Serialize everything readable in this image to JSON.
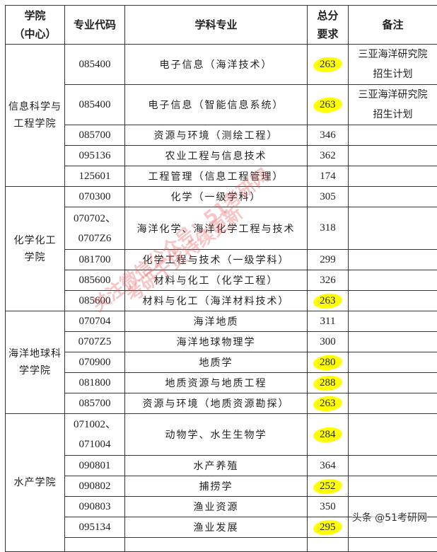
{
  "headers": {
    "college": "学院\n（中心）",
    "code": "专业代码",
    "major": "学科专业",
    "score": "总分\n要求",
    "note": "备注"
  },
  "highlight_color": "#ffff00",
  "groups": [
    {
      "college": "信息科学与\n工程学院",
      "rows": [
        {
          "code": "085400",
          "major": "电子信息（海洋技术）",
          "score": "263",
          "highlight": true,
          "note": "三亚海洋研究院\n招生计划",
          "h": 55
        },
        {
          "code": "085400",
          "major": "电子信息（智能信息系统）",
          "score": "263",
          "highlight": true,
          "note": "三亚海洋研究院\n招生计划",
          "h": 56
        },
        {
          "code": "085700",
          "major": "资源与环境（测绘工程）",
          "score": "346",
          "highlight": false,
          "note": "",
          "h": 28
        },
        {
          "code": "095136",
          "major": "农业工程与信息技术",
          "score": "362",
          "highlight": false,
          "note": "",
          "h": 29
        },
        {
          "code": "125601",
          "major": "工程管理（信息工程管理）",
          "score": "174",
          "highlight": false,
          "note": "",
          "h": 28
        }
      ]
    },
    {
      "college": "化学化工\n学院",
      "rows": [
        {
          "code": "070300",
          "major": "化学（一级学科）",
          "score": "305",
          "highlight": false,
          "note": "",
          "h": 28
        },
        {
          "code": "070702、\n0707Z6",
          "major": "海洋化学、海洋化学工程与技术",
          "score": "318",
          "highlight": false,
          "note": "",
          "h": 60
        },
        {
          "code": "081700",
          "major": "化学工程与技术（一级学科）",
          "score": "299",
          "highlight": false,
          "note": "",
          "h": 29
        },
        {
          "code": "085600",
          "major": "材料与化工（化学工程）",
          "score": "326",
          "highlight": false,
          "note": "",
          "h": 28
        },
        {
          "code": "085600",
          "major": "材料与化工（海洋材料技术）",
          "score": "263",
          "highlight": true,
          "note": "",
          "h": 28
        }
      ]
    },
    {
      "college": "海洋地球科\n学学院",
      "rows": [
        {
          "code": "070704",
          "major": "海洋地质",
          "score": "311",
          "highlight": false,
          "note": "",
          "h": 29
        },
        {
          "code": "0707Z5",
          "major": "海洋地球物理学",
          "score": "300",
          "highlight": false,
          "note": "",
          "h": 28
        },
        {
          "code": "070900",
          "major": "地质学",
          "score": "280",
          "highlight": true,
          "note": "",
          "h": 29
        },
        {
          "code": "081800",
          "major": "地质资源与地质工程",
          "score": "288",
          "highlight": true,
          "note": "",
          "h": 28
        },
        {
          "code": "085700",
          "major": "资源与环境（地质资源勘探）",
          "score": "263",
          "highlight": true,
          "note": "",
          "h": 28
        }
      ]
    },
    {
      "college": "水产学院",
      "rows": [
        {
          "code": "071002、\n071004",
          "major": "动物学、水生生物学",
          "score": "284",
          "highlight": true,
          "note": "",
          "h": 59
        },
        {
          "code": "090801",
          "major": "水产养殖",
          "score": "364",
          "highlight": false,
          "note": "",
          "h": 29
        },
        {
          "code": "090802",
          "major": "捕捞学",
          "score": "252",
          "highlight": true,
          "note": "",
          "h": 29
        },
        {
          "code": "090803",
          "major": "渔业资源",
          "score": "350",
          "highlight": false,
          "note": "",
          "h": 28
        },
        {
          "code": "095134",
          "major": "渔业发展",
          "score": "295",
          "highlight": true,
          "note": "",
          "h": 29
        },
        {
          "code": "",
          "major": "",
          "score": "",
          "highlight": false,
          "note": "",
          "h": 20
        }
      ]
    }
  ],
  "watermark": {
    "line1": "关注微信公众号：51考研网",
    "line2": "考研干货持续更新"
  },
  "credit": "头条 @51考研网"
}
